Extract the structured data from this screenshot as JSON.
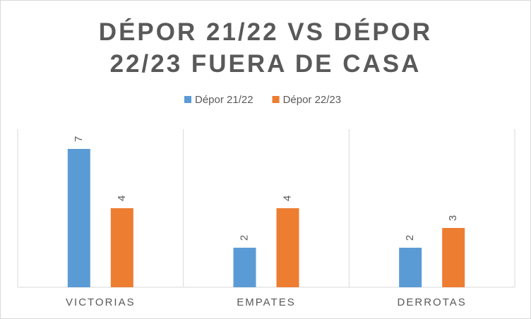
{
  "chart_data": {
    "type": "bar",
    "title": "DÉPOR 21/22 VS DÉPOR 22/23 FUERA DE CASA",
    "categories": [
      "VICTORIAS",
      "EMPATES",
      "DERROTAS"
    ],
    "series": [
      {
        "name": "Dépor 21/22",
        "color": "#5b9bd5",
        "values": [
          7,
          2,
          2
        ]
      },
      {
        "name": "Dépor 22/23",
        "color": "#ed7d31",
        "values": [
          4,
          4,
          3
        ]
      }
    ],
    "ylim": [
      0,
      8
    ],
    "legend": "top",
    "data_labels": true
  }
}
